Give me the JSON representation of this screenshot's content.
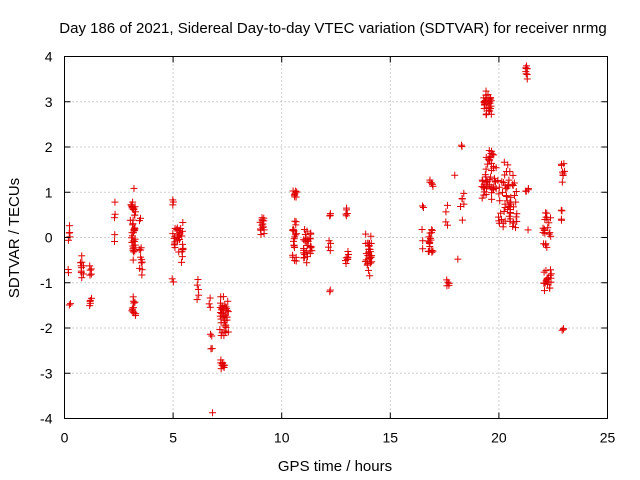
{
  "chart_data": {
    "type": "scatter",
    "title": "Day 186 of 2021, Sidereal Day-to-day VTEC variation (SDTVAR) for receiver nrmg",
    "xlabel": "GPS time / hours",
    "ylabel": "SDTVAR / TECUs",
    "xlim": [
      0,
      25
    ],
    "ylim": [
      -4,
      4
    ],
    "x_ticks": [
      "0",
      "5",
      "10",
      "15",
      "20",
      "25"
    ],
    "y_ticks": [
      "-4",
      "-3",
      "-2",
      "-1",
      "0",
      "1",
      "2",
      "3",
      "4"
    ],
    "grid": true,
    "marker": "+",
    "series_color": "#e00000",
    "clusters": [
      {
        "x": 0.2,
        "dx": 0.05,
        "y": [
          -0.15,
          0.3
        ],
        "n": 5
      },
      {
        "x": 0.2,
        "dx": 0.05,
        "y": [
          -0.8,
          -0.7
        ],
        "n": 2
      },
      {
        "x": 0.25,
        "dx": 0.05,
        "y": [
          -1.5,
          -1.45
        ],
        "n": 2
      },
      {
        "x": 0.8,
        "dx": 0.1,
        "y": [
          -0.95,
          -0.4
        ],
        "n": 10
      },
      {
        "x": 1.2,
        "dx": 0.05,
        "y": [
          -0.9,
          -0.6
        ],
        "n": 5
      },
      {
        "x": 1.2,
        "dx": 0.05,
        "y": [
          -1.55,
          -1.3
        ],
        "n": 5
      },
      {
        "x": 2.35,
        "dx": 0.05,
        "y": [
          -0.25,
          1.0
        ],
        "n": 5
      },
      {
        "x": 3.15,
        "dx": 0.12,
        "y": [
          -0.6,
          1.1
        ],
        "n": 40
      },
      {
        "x": 3.2,
        "dx": 0.1,
        "y": [
          -1.8,
          -1.3
        ],
        "n": 12
      },
      {
        "x": 3.5,
        "dx": 0.08,
        "y": [
          -0.85,
          -0.1
        ],
        "n": 10
      },
      {
        "x": 3.5,
        "dx": 0.05,
        "y": [
          0.35,
          0.45
        ],
        "n": 2
      },
      {
        "x": 5.0,
        "dx": 0.05,
        "y": [
          0.7,
          0.85
        ],
        "n": 3
      },
      {
        "x": 5.1,
        "dx": 0.12,
        "y": [
          -0.3,
          0.3
        ],
        "n": 15
      },
      {
        "x": 5.0,
        "dx": 0.05,
        "y": [
          -1.0,
          -0.9
        ],
        "n": 2
      },
      {
        "x": 5.35,
        "dx": 0.12,
        "y": [
          -0.6,
          0.45
        ],
        "n": 18
      },
      {
        "x": 6.15,
        "dx": 0.05,
        "y": [
          -1.4,
          -0.9
        ],
        "n": 5
      },
      {
        "x": 6.7,
        "dx": 0.05,
        "y": [
          -1.6,
          -1.3
        ],
        "n": 3
      },
      {
        "x": 6.75,
        "dx": 0.05,
        "y": [
          -2.6,
          -2.0
        ],
        "n": 4
      },
      {
        "x": 6.8,
        "dx": 0.02,
        "y": [
          -3.9,
          -3.85
        ],
        "n": 1
      },
      {
        "x": 7.35,
        "dx": 0.2,
        "y": [
          -2.3,
          -1.2
        ],
        "n": 40
      },
      {
        "x": 7.3,
        "dx": 0.12,
        "y": [
          -2.9,
          -2.7
        ],
        "n": 10
      },
      {
        "x": 9.1,
        "dx": 0.1,
        "y": [
          0.0,
          0.55
        ],
        "n": 15
      },
      {
        "x": 10.6,
        "dx": 0.1,
        "y": [
          0.85,
          1.05
        ],
        "n": 8
      },
      {
        "x": 10.6,
        "dx": 0.1,
        "y": [
          -0.6,
          0.45
        ],
        "n": 20
      },
      {
        "x": 11.2,
        "dx": 0.2,
        "y": [
          -0.6,
          0.25
        ],
        "n": 30
      },
      {
        "x": 12.2,
        "dx": 0.05,
        "y": [
          0.45,
          0.55
        ],
        "n": 3
      },
      {
        "x": 12.2,
        "dx": 0.05,
        "y": [
          -0.35,
          -0.05
        ],
        "n": 4
      },
      {
        "x": 12.25,
        "dx": 0.05,
        "y": [
          -1.2,
          -1.15
        ],
        "n": 2
      },
      {
        "x": 13.0,
        "dx": 0.08,
        "y": [
          0.4,
          0.7
        ],
        "n": 5
      },
      {
        "x": 13.0,
        "dx": 0.08,
        "y": [
          -0.6,
          -0.3
        ],
        "n": 8
      },
      {
        "x": 14.0,
        "dx": 0.15,
        "y": [
          -0.9,
          0.15
        ],
        "n": 30
      },
      {
        "x": 16.5,
        "dx": 0.05,
        "y": [
          0.65,
          0.7
        ],
        "n": 2
      },
      {
        "x": 16.5,
        "dx": 0.05,
        "y": [
          -0.3,
          0.2
        ],
        "n": 3
      },
      {
        "x": 16.85,
        "dx": 0.12,
        "y": [
          -0.5,
          0.2
        ],
        "n": 18
      },
      {
        "x": 16.9,
        "dx": 0.08,
        "y": [
          1.1,
          1.3
        ],
        "n": 5
      },
      {
        "x": 17.65,
        "dx": 0.08,
        "y": [
          -1.1,
          -0.9
        ],
        "n": 5
      },
      {
        "x": 17.6,
        "dx": 0.08,
        "y": [
          0.2,
          0.8
        ],
        "n": 4
      },
      {
        "x": 18.0,
        "dx": 0.05,
        "y": [
          1.35,
          1.4
        ],
        "n": 1
      },
      {
        "x": 18.1,
        "dx": 0.05,
        "y": [
          -0.5,
          -0.45
        ],
        "n": 1
      },
      {
        "x": 18.3,
        "dx": 0.05,
        "y": [
          2.0,
          2.05
        ],
        "n": 2
      },
      {
        "x": 18.3,
        "dx": 0.1,
        "y": [
          0.3,
          1.25
        ],
        "n": 6
      },
      {
        "x": 19.5,
        "dx": 0.2,
        "y": [
          2.7,
          3.25
        ],
        "n": 30
      },
      {
        "x": 19.6,
        "dx": 0.2,
        "y": [
          1.5,
          2.0
        ],
        "n": 15
      },
      {
        "x": 19.55,
        "dx": 0.35,
        "y": [
          0.8,
          1.55
        ],
        "n": 35
      },
      {
        "x": 20.4,
        "dx": 0.45,
        "y": [
          -0.1,
          1.7
        ],
        "n": 60
      },
      {
        "x": 21.25,
        "dx": 0.08,
        "y": [
          3.5,
          3.85
        ],
        "n": 8
      },
      {
        "x": 21.3,
        "dx": 0.08,
        "y": [
          1.0,
          1.1
        ],
        "n": 4
      },
      {
        "x": 21.3,
        "dx": 0.05,
        "y": [
          0.15,
          0.2
        ],
        "n": 1
      },
      {
        "x": 22.2,
        "dx": 0.2,
        "y": [
          -0.25,
          0.6
        ],
        "n": 20
      },
      {
        "x": 22.25,
        "dx": 0.2,
        "y": [
          -1.2,
          -0.7
        ],
        "n": 20
      },
      {
        "x": 22.9,
        "dx": 0.05,
        "y": [
          0.3,
          0.7
        ],
        "n": 4
      },
      {
        "x": 22.95,
        "dx": 0.08,
        "y": [
          1.2,
          1.75
        ],
        "n": 8
      },
      {
        "x": 22.95,
        "dx": 0.05,
        "y": [
          -2.05,
          -2.0
        ],
        "n": 3
      }
    ]
  }
}
